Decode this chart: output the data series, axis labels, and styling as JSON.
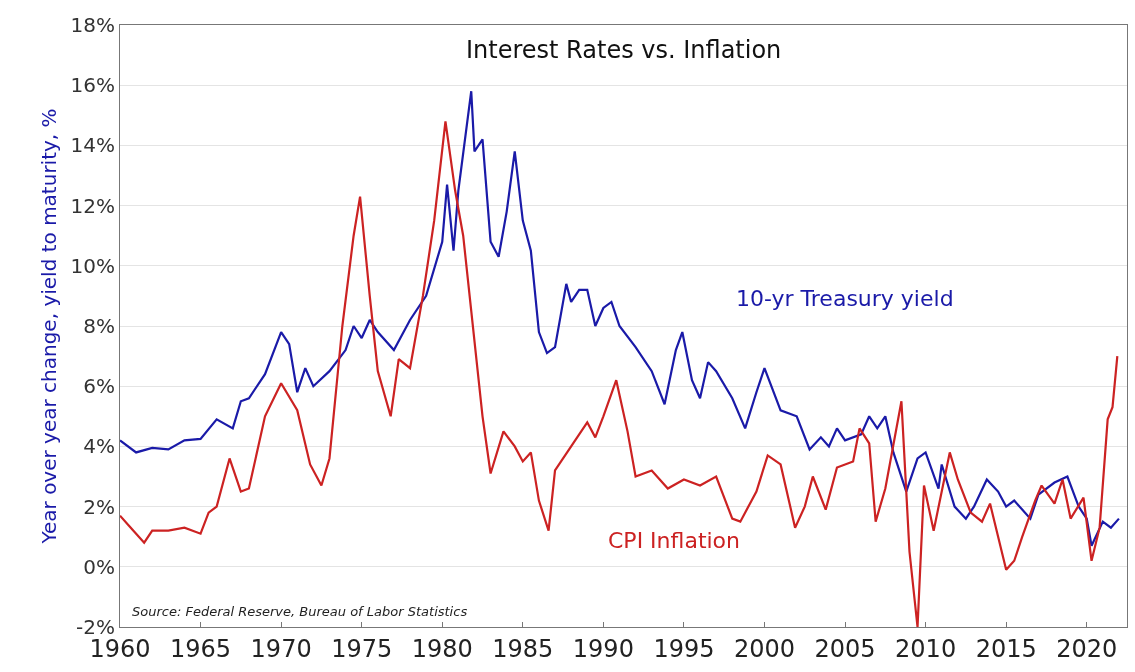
{
  "chart_data": {
    "type": "line",
    "title": "Interest Rates vs. Inflation",
    "ylabel": "Year over year change, yield to maturity, %",
    "annotations": [
      "Source: Federal Reserve, Bureau of Labor Statistics"
    ],
    "xlim": [
      1960,
      2022.5
    ],
    "xticks": [
      1960,
      1965,
      1970,
      1975,
      1980,
      1985,
      1990,
      1995,
      2000,
      2005,
      2010,
      2015,
      2020
    ],
    "ylim": [
      -2,
      18
    ],
    "yticks": [
      {
        "value": -2,
        "label": "-2%"
      },
      {
        "value": 0,
        "label": "0%"
      },
      {
        "value": 2,
        "label": "2%"
      },
      {
        "value": 4,
        "label": "4%"
      },
      {
        "value": 6,
        "label": "6%"
      },
      {
        "value": 8,
        "label": "8%"
      },
      {
        "value": 10,
        "label": "10%"
      },
      {
        "value": 12,
        "label": "12%"
      },
      {
        "value": 14,
        "label": "14%"
      },
      {
        "value": 16,
        "label": "16%"
      },
      {
        "value": 18,
        "label": "18%"
      }
    ],
    "grid": "y",
    "legend": false,
    "series": [
      {
        "name": "10-yr Treasury yield",
        "color": "#1a1aa8",
        "x": [
          1960,
          1961,
          1962,
          1963,
          1964,
          1965,
          1966,
          1967,
          1967.5,
          1968,
          1969,
          1970,
          1970.5,
          1971,
          1971.5,
          1972,
          1973,
          1974,
          1974.5,
          1975,
          1975.5,
          1976,
          1977,
          1978,
          1979,
          1980,
          1980.3,
          1980.7,
          1981,
          1981.8,
          1982,
          1982.5,
          1983,
          1983.5,
          1984,
          1984.5,
          1985,
          1985.5,
          1986,
          1986.5,
          1987,
          1987.7,
          1988,
          1988.5,
          1989,
          1989.5,
          1990,
          1990.5,
          1991,
          1992,
          1993,
          1993.8,
          1994.5,
          1994.9,
          1995.5,
          1996,
          1996.5,
          1997,
          1998,
          1998.8,
          1999.5,
          2000,
          2001,
          2002,
          2002.8,
          2003.5,
          2004,
          2004.5,
          2005,
          2006,
          2006.5,
          2007,
          2007.5,
          2008,
          2008.8,
          2009.5,
          2010,
          2010.8,
          2011,
          2011.8,
          2012.5,
          2013,
          2013.8,
          2014.5,
          2015,
          2015.5,
          2016.5,
          2017,
          2018,
          2018.8,
          2019.5,
          2020,
          2020.3,
          2021,
          2021.5,
          2022
        ],
        "values": [
          4.2,
          3.8,
          3.95,
          3.9,
          4.2,
          4.25,
          4.9,
          4.6,
          5.5,
          5.6,
          6.4,
          7.8,
          7.4,
          5.8,
          6.6,
          6.0,
          6.5,
          7.2,
          8.0,
          7.6,
          8.2,
          7.8,
          7.2,
          8.2,
          9.0,
          10.8,
          12.7,
          10.5,
          12.5,
          15.8,
          13.8,
          14.2,
          10.8,
          10.3,
          11.8,
          13.8,
          11.5,
          10.5,
          7.8,
          7.1,
          7.3,
          9.4,
          8.8,
          9.2,
          9.2,
          8.0,
          8.6,
          8.8,
          8.0,
          7.3,
          6.5,
          5.4,
          7.2,
          7.8,
          6.2,
          5.6,
          6.8,
          6.5,
          5.6,
          4.6,
          5.8,
          6.6,
          5.2,
          5.0,
          3.9,
          4.3,
          4.0,
          4.6,
          4.2,
          4.4,
          5.0,
          4.6,
          5.0,
          3.8,
          2.5,
          3.6,
          3.8,
          2.6,
          3.4,
          2.0,
          1.6,
          2.0,
          2.9,
          2.5,
          2.0,
          2.2,
          1.6,
          2.4,
          2.8,
          3.0,
          2.0,
          1.6,
          0.7,
          1.5,
          1.3,
          1.6
        ]
      },
      {
        "name": "CPI Inflation",
        "color": "#cc2222",
        "x": [
          1960,
          1960.5,
          1961.5,
          1962,
          1963,
          1964,
          1965,
          1965.5,
          1966,
          1966.8,
          1967.5,
          1968,
          1969,
          1970,
          1971,
          1971.8,
          1972.5,
          1973,
          1973.8,
          1974.5,
          1974.9,
          1975.5,
          1976,
          1976.8,
          1977.3,
          1978,
          1978.8,
          1979.5,
          1980.2,
          1980.8,
          1981.3,
          1981.8,
          1982.5,
          1983,
          1983.8,
          1984.5,
          1985,
          1985.5,
          1986,
          1986.6,
          1987,
          1988,
          1989,
          1989.5,
          1990,
          1990.8,
          1991.5,
          1992,
          1993,
          1994,
          1995,
          1996,
          1997,
          1998,
          1998.5,
          1999.5,
          2000.2,
          2001,
          2001.9,
          2002.5,
          2003,
          2003.8,
          2004.5,
          2005.5,
          2005.9,
          2006.5,
          2006.9,
          2007.5,
          2008.5,
          2009,
          2009.5,
          2009.9,
          2010.5,
          2011.5,
          2012,
          2012.8,
          2013.5,
          2014,
          2015,
          2015.5,
          2016,
          2016.8,
          2017.2,
          2018,
          2018.5,
          2019,
          2019.8,
          2020.3,
          2020.8,
          2021.3,
          2021.6,
          2021.9
        ],
        "values": [
          1.7,
          1.4,
          0.8,
          1.2,
          1.2,
          1.3,
          1.1,
          1.8,
          2.0,
          3.6,
          2.5,
          2.6,
          5.0,
          6.1,
          5.2,
          3.4,
          2.7,
          3.6,
          8.0,
          11.0,
          12.3,
          9.0,
          6.5,
          5.0,
          6.9,
          6.6,
          9.0,
          11.5,
          14.8,
          12.5,
          11.0,
          8.5,
          5.0,
          3.1,
          4.5,
          4.0,
          3.5,
          3.8,
          2.2,
          1.2,
          3.2,
          4.0,
          4.8,
          4.3,
          5.0,
          6.2,
          4.5,
          3.0,
          3.2,
          2.6,
          2.9,
          2.7,
          3.0,
          1.6,
          1.5,
          2.5,
          3.7,
          3.4,
          1.3,
          2.0,
          3.0,
          1.9,
          3.3,
          3.5,
          4.6,
          4.1,
          1.5,
          2.6,
          5.5,
          0.5,
          -2.0,
          2.7,
          1.2,
          3.8,
          2.9,
          1.8,
          1.5,
          2.1,
          -0.1,
          0.2,
          1.0,
          2.2,
          2.7,
          2.1,
          2.9,
          1.6,
          2.3,
          0.2,
          1.3,
          4.9,
          5.3,
          7.0
        ]
      }
    ]
  }
}
